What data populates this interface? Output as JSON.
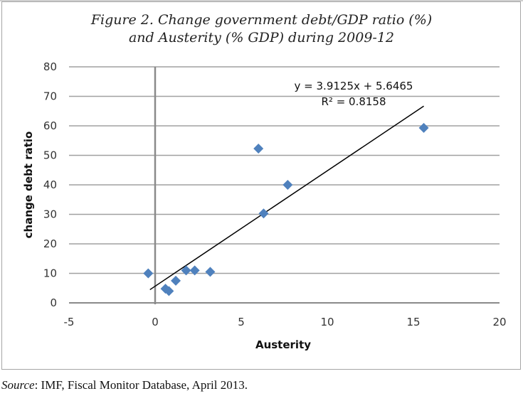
{
  "figure": {
    "title_line1": "Figure 2. Change government debt/GDP ratio (%)",
    "title_line2": "and Austerity (% GDP)  during 2009-12",
    "source_label": "Source",
    "source_text": ": IMF, Fiscal Monitor Database, April 2013."
  },
  "chart_data": {
    "type": "scatter",
    "title": "Figure 2. Change government debt/GDP ratio (%) and Austerity (% GDP) during 2009-12",
    "xlabel": "Austerity",
    "ylabel": "change debt ratio",
    "xlim": [
      -5,
      20
    ],
    "ylim": [
      0,
      80
    ],
    "x_ticks": [
      -5,
      0,
      5,
      10,
      15,
      20
    ],
    "y_ticks": [
      0,
      10,
      20,
      30,
      40,
      50,
      60,
      70,
      80
    ],
    "grid": "horizontal",
    "marker": "diamond",
    "marker_color": "#4f81bd",
    "points": [
      {
        "x": -0.4,
        "y": 10.0
      },
      {
        "x": 0.6,
        "y": 4.8
      },
      {
        "x": 0.8,
        "y": 4.0
      },
      {
        "x": 1.2,
        "y": 7.5
      },
      {
        "x": 1.8,
        "y": 11.0
      },
      {
        "x": 2.3,
        "y": 11.0
      },
      {
        "x": 3.2,
        "y": 10.5
      },
      {
        "x": 6.0,
        "y": 52.3
      },
      {
        "x": 6.3,
        "y": 30.3
      },
      {
        "x": 7.7,
        "y": 40.0
      },
      {
        "x": 15.6,
        "y": 59.3
      }
    ],
    "trendline": {
      "type": "linear",
      "slope": 3.9125,
      "intercept": 5.6465,
      "x_range": [
        -0.3,
        15.6
      ],
      "equation_label": "y = 3.9125x + 5.6465",
      "r2_label": "R² = 0.8158",
      "color": "#000000"
    }
  }
}
